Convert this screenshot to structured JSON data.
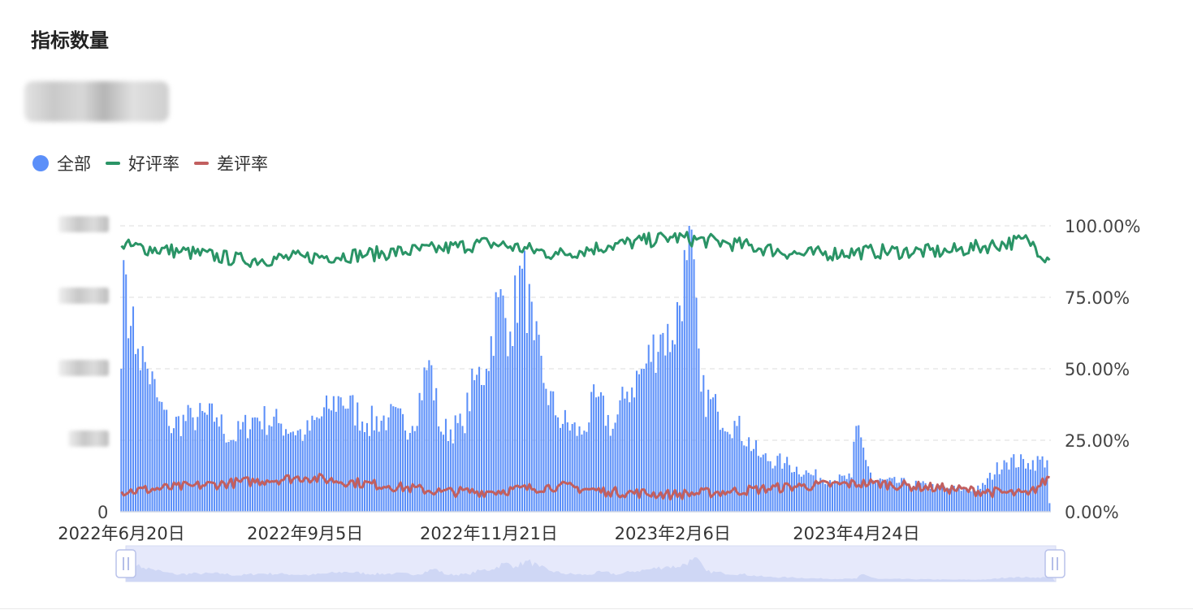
{
  "title": "指标数量",
  "legend": [
    {
      "name": "全部",
      "color": "#5b8ff9",
      "shape": "circle"
    },
    {
      "name": "好评率",
      "color": "#2a9466",
      "shape": "line"
    },
    {
      "name": "差评率",
      "color": "#c25f5f",
      "shape": "line"
    }
  ],
  "chart_data": {
    "type": "bar+line",
    "x_ticks": [
      "2022年6月20日",
      "2022年9月5日",
      "2022年11月21日",
      "2023年2月6日",
      "2023年4月24日"
    ],
    "x_range": [
      "2022-06-20",
      "2023-07-14"
    ],
    "y_left": {
      "ticks": [
        "0"
      ],
      "note": "other left-axis tick labels are blurred in the original"
    },
    "y_right": {
      "ticks": [
        "0.00%",
        "25.00%",
        "50.00%",
        "75.00%",
        "100.00%"
      ],
      "range": [
        0,
        100
      ]
    },
    "grid": "dashed horizontal",
    "legend_position": "top-left",
    "dataZoom": true,
    "series": [
      {
        "name": "全部",
        "type": "bar",
        "axis": "left",
        "unit": "fraction of left-axis maximum",
        "anchors": [
          [
            "2022-06-20",
            0.5
          ],
          [
            "2022-06-21",
            0.88
          ],
          [
            "2022-06-22",
            0.83
          ],
          [
            "2022-06-24",
            0.65
          ],
          [
            "2022-06-27",
            0.57
          ],
          [
            "2022-07-01",
            0.5
          ],
          [
            "2022-07-05",
            0.4
          ],
          [
            "2022-07-10",
            0.3
          ],
          [
            "2022-07-20",
            0.33
          ],
          [
            "2022-07-30",
            0.33
          ],
          [
            "2022-08-05",
            0.25
          ],
          [
            "2022-08-15",
            0.33
          ],
          [
            "2022-08-25",
            0.31
          ],
          [
            "2022-09-05",
            0.27
          ],
          [
            "2022-09-15",
            0.36
          ],
          [
            "2022-09-20",
            0.4
          ],
          [
            "2022-10-01",
            0.31
          ],
          [
            "2022-10-10",
            0.33
          ],
          [
            "2022-10-20",
            0.3
          ],
          [
            "2022-10-27",
            0.53
          ],
          [
            "2022-11-01",
            0.28
          ],
          [
            "2022-11-10",
            0.3
          ],
          [
            "2022-11-15",
            0.46
          ],
          [
            "2022-11-20",
            0.5
          ],
          [
            "2022-11-25",
            0.75
          ],
          [
            "2022-11-30",
            0.63
          ],
          [
            "2022-12-05",
            0.85
          ],
          [
            "2022-12-10",
            0.6
          ],
          [
            "2022-12-15",
            0.43
          ],
          [
            "2022-12-20",
            0.33
          ],
          [
            "2022-12-30",
            0.27
          ],
          [
            "2023-01-05",
            0.4
          ],
          [
            "2023-01-12",
            0.29
          ],
          [
            "2023-01-18",
            0.42
          ],
          [
            "2023-01-25",
            0.5
          ],
          [
            "2023-02-01",
            0.62
          ],
          [
            "2023-02-06",
            0.6
          ],
          [
            "2023-02-12",
            0.88
          ],
          [
            "2023-02-13",
            1.0
          ],
          [
            "2023-02-18",
            0.42
          ],
          [
            "2023-02-25",
            0.35
          ],
          [
            "2023-03-05",
            0.3
          ],
          [
            "2023-03-15",
            0.19
          ],
          [
            "2023-03-25",
            0.17
          ],
          [
            "2023-04-05",
            0.13
          ],
          [
            "2023-04-15",
            0.11
          ],
          [
            "2023-04-22",
            0.12
          ],
          [
            "2023-04-24",
            0.3
          ],
          [
            "2023-05-01",
            0.11
          ],
          [
            "2023-05-15",
            0.1
          ],
          [
            "2023-06-01",
            0.08
          ],
          [
            "2023-06-15",
            0.08
          ],
          [
            "2023-06-25",
            0.18
          ],
          [
            "2023-07-05",
            0.17
          ],
          [
            "2023-07-13",
            0.18
          ],
          [
            "2023-07-14",
            0.03
          ]
        ]
      },
      {
        "name": "好评率",
        "type": "line",
        "axis": "right",
        "unit": "%",
        "anchors": [
          [
            "2022-06-20",
            93
          ],
          [
            "2022-07-15",
            91
          ],
          [
            "2022-08-10",
            88
          ],
          [
            "2022-09-05",
            89
          ],
          [
            "2022-10-01",
            90
          ],
          [
            "2022-11-01",
            92
          ],
          [
            "2022-11-21",
            94
          ],
          [
            "2022-12-20",
            90
          ],
          [
            "2023-01-10",
            93
          ],
          [
            "2023-02-06",
            96
          ],
          [
            "2023-03-01",
            94
          ],
          [
            "2023-04-01",
            90
          ],
          [
            "2023-05-01",
            91
          ],
          [
            "2023-06-01",
            91
          ],
          [
            "2023-07-05",
            95
          ],
          [
            "2023-07-14",
            88
          ]
        ]
      },
      {
        "name": "差评率",
        "type": "line",
        "axis": "right",
        "unit": "%",
        "anchors": [
          [
            "2022-06-20",
            7
          ],
          [
            "2022-07-20",
            9
          ],
          [
            "2022-08-20",
            11
          ],
          [
            "2022-09-05",
            12
          ],
          [
            "2022-10-10",
            9
          ],
          [
            "2022-11-01",
            7
          ],
          [
            "2022-11-21",
            7
          ],
          [
            "2022-12-20",
            9
          ],
          [
            "2023-01-10",
            7
          ],
          [
            "2023-02-06",
            6
          ],
          [
            "2023-03-01",
            7
          ],
          [
            "2023-04-01",
            9
          ],
          [
            "2023-05-01",
            10
          ],
          [
            "2023-06-01",
            8
          ],
          [
            "2023-07-05",
            6
          ],
          [
            "2023-07-14",
            12
          ]
        ]
      }
    ]
  }
}
